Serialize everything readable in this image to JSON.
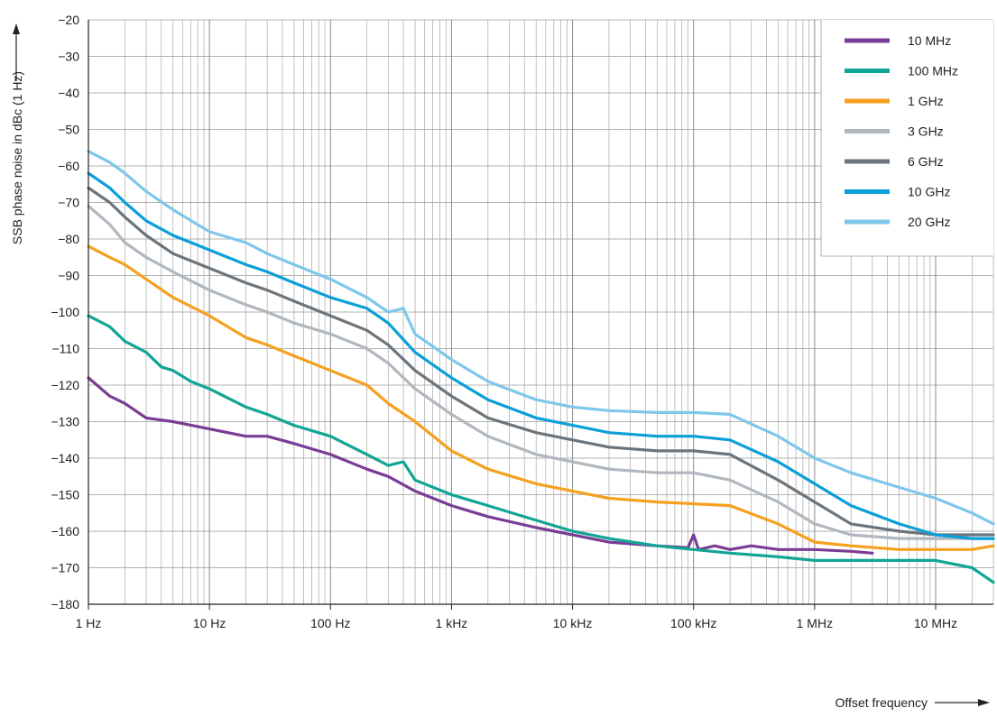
{
  "chart_data": {
    "type": "line",
    "title": "",
    "xlabel": "Offset frequency",
    "ylabel": "SSB phase noise in dBc (1 Hz)",
    "x_scale": "log",
    "xlim": [
      1,
      30000000
    ],
    "ylim": [
      -180,
      -20
    ],
    "grid": true,
    "legend_position": "top-right",
    "x_ticks": [
      {
        "value": 1,
        "label": "1 Hz"
      },
      {
        "value": 10,
        "label": "10 Hz"
      },
      {
        "value": 100,
        "label": "100 Hz"
      },
      {
        "value": 1000,
        "label": "1 kHz"
      },
      {
        "value": 10000,
        "label": "10 kHz"
      },
      {
        "value": 100000,
        "label": "100 kHz"
      },
      {
        "value": 1000000,
        "label": "1 MHz"
      },
      {
        "value": 10000000,
        "label": "10 MHz"
      }
    ],
    "y_ticks": [
      -20,
      -30,
      -40,
      -50,
      -60,
      -70,
      -80,
      -90,
      -100,
      -110,
      -120,
      -130,
      -140,
      -150,
      -160,
      -170,
      -180
    ],
    "y_tick_labels": [
      "−20",
      "−30",
      "−40",
      "−50",
      "−60",
      "−70",
      "−80",
      "−90",
      "−100",
      "−110",
      "−120",
      "−130",
      "−140",
      "−150",
      "−160",
      "−170",
      "−180"
    ],
    "series": [
      {
        "name": "10 MHz",
        "color": "#7b3c96",
        "points": [
          [
            1,
            -118
          ],
          [
            1.5,
            -123
          ],
          [
            2,
            -125
          ],
          [
            3,
            -129
          ],
          [
            5,
            -130
          ],
          [
            10,
            -132
          ],
          [
            20,
            -134
          ],
          [
            30,
            -134
          ],
          [
            50,
            -136
          ],
          [
            100,
            -139
          ],
          [
            200,
            -143
          ],
          [
            300,
            -145
          ],
          [
            500,
            -149
          ],
          [
            1000,
            -153
          ],
          [
            2000,
            -156
          ],
          [
            5000,
            -159
          ],
          [
            10000,
            -161
          ],
          [
            20000,
            -163
          ],
          [
            50000,
            -164
          ],
          [
            90000,
            -164.5
          ],
          [
            100000,
            -161
          ],
          [
            110000,
            -165
          ],
          [
            150000,
            -164
          ],
          [
            200000,
            -165
          ],
          [
            300000,
            -164
          ],
          [
            500000,
            -165
          ],
          [
            1000000,
            -165
          ],
          [
            2000000,
            -165.5
          ],
          [
            3000000,
            -166
          ]
        ]
      },
      {
        "name": "100 MHz",
        "color": "#10a595",
        "points": [
          [
            1,
            -101
          ],
          [
            1.5,
            -104
          ],
          [
            2,
            -108
          ],
          [
            3,
            -111
          ],
          [
            4,
            -115
          ],
          [
            5,
            -116
          ],
          [
            7,
            -119
          ],
          [
            10,
            -121
          ],
          [
            20,
            -126
          ],
          [
            30,
            -128
          ],
          [
            50,
            -131
          ],
          [
            100,
            -134
          ],
          [
            200,
            -139
          ],
          [
            300,
            -142
          ],
          [
            400,
            -141
          ],
          [
            500,
            -146
          ],
          [
            1000,
            -150
          ],
          [
            2000,
            -153
          ],
          [
            5000,
            -157
          ],
          [
            10000,
            -160
          ],
          [
            20000,
            -162
          ],
          [
            50000,
            -164
          ],
          [
            100000,
            -165
          ],
          [
            200000,
            -166
          ],
          [
            500000,
            -167
          ],
          [
            1000000,
            -168
          ],
          [
            5000000,
            -168
          ],
          [
            10000000,
            -168
          ],
          [
            20000000,
            -170
          ],
          [
            30000000,
            -174
          ]
        ]
      },
      {
        "name": "1 GHz",
        "color": "#f5a01e",
        "points": [
          [
            1,
            -82
          ],
          [
            1.5,
            -85
          ],
          [
            2,
            -87
          ],
          [
            3,
            -91
          ],
          [
            5,
            -96
          ],
          [
            10,
            -101
          ],
          [
            20,
            -107
          ],
          [
            30,
            -109
          ],
          [
            50,
            -112
          ],
          [
            100,
            -116
          ],
          [
            200,
            -120
          ],
          [
            300,
            -125
          ],
          [
            500,
            -130
          ],
          [
            1000,
            -138
          ],
          [
            2000,
            -143
          ],
          [
            5000,
            -147
          ],
          [
            10000,
            -149
          ],
          [
            20000,
            -151
          ],
          [
            50000,
            -152
          ],
          [
            100000,
            -152.5
          ],
          [
            200000,
            -153
          ],
          [
            500000,
            -158
          ],
          [
            1000000,
            -163
          ],
          [
            2000000,
            -164
          ],
          [
            5000000,
            -165
          ],
          [
            10000000,
            -165
          ],
          [
            20000000,
            -165
          ],
          [
            30000000,
            -164
          ]
        ]
      },
      {
        "name": "3 GHz",
        "color": "#b0b7be",
        "points": [
          [
            1,
            -71
          ],
          [
            1.5,
            -76
          ],
          [
            2,
            -81
          ],
          [
            3,
            -85
          ],
          [
            5,
            -89
          ],
          [
            10,
            -94
          ],
          [
            20,
            -98
          ],
          [
            30,
            -100
          ],
          [
            50,
            -103
          ],
          [
            100,
            -106
          ],
          [
            200,
            -110
          ],
          [
            300,
            -114
          ],
          [
            500,
            -121
          ],
          [
            1000,
            -128
          ],
          [
            2000,
            -134
          ],
          [
            5000,
            -139
          ],
          [
            10000,
            -141
          ],
          [
            20000,
            -143
          ],
          [
            50000,
            -144
          ],
          [
            100000,
            -144
          ],
          [
            200000,
            -146
          ],
          [
            500000,
            -152
          ],
          [
            1000000,
            -158
          ],
          [
            2000000,
            -161
          ],
          [
            5000000,
            -162
          ],
          [
            10000000,
            -162
          ],
          [
            20000000,
            -162
          ],
          [
            30000000,
            -162
          ]
        ]
      },
      {
        "name": "6 GHz",
        "color": "#6c757c",
        "points": [
          [
            1,
            -66
          ],
          [
            1.5,
            -70
          ],
          [
            2,
            -74
          ],
          [
            3,
            -79
          ],
          [
            5,
            -84
          ],
          [
            10,
            -88
          ],
          [
            20,
            -92
          ],
          [
            30,
            -94
          ],
          [
            50,
            -97
          ],
          [
            100,
            -101
          ],
          [
            200,
            -105
          ],
          [
            300,
            -109
          ],
          [
            500,
            -116
          ],
          [
            1000,
            -123
          ],
          [
            2000,
            -129
          ],
          [
            5000,
            -133
          ],
          [
            10000,
            -135
          ],
          [
            20000,
            -137
          ],
          [
            50000,
            -138
          ],
          [
            100000,
            -138
          ],
          [
            200000,
            -139
          ],
          [
            500000,
            -146
          ],
          [
            1000000,
            -152
          ],
          [
            2000000,
            -158
          ],
          [
            5000000,
            -160
          ],
          [
            10000000,
            -161
          ],
          [
            20000000,
            -161
          ],
          [
            30000000,
            -161
          ]
        ]
      },
      {
        "name": "10 GHz",
        "color": "#0a9fd8",
        "points": [
          [
            1,
            -62
          ],
          [
            1.5,
            -66
          ],
          [
            2,
            -70
          ],
          [
            3,
            -75
          ],
          [
            5,
            -79
          ],
          [
            10,
            -83
          ],
          [
            20,
            -87
          ],
          [
            30,
            -89
          ],
          [
            50,
            -92
          ],
          [
            100,
            -96
          ],
          [
            200,
            -99
          ],
          [
            300,
            -103
          ],
          [
            500,
            -111
          ],
          [
            1000,
            -118
          ],
          [
            2000,
            -124
          ],
          [
            5000,
            -129
          ],
          [
            10000,
            -131
          ],
          [
            20000,
            -133
          ],
          [
            50000,
            -134
          ],
          [
            100000,
            -134
          ],
          [
            200000,
            -135
          ],
          [
            500000,
            -141
          ],
          [
            1000000,
            -147
          ],
          [
            2000000,
            -153
          ],
          [
            5000000,
            -158
          ],
          [
            10000000,
            -161
          ],
          [
            20000000,
            -162
          ],
          [
            30000000,
            -162
          ]
        ]
      },
      {
        "name": "20 GHz",
        "color": "#7fc7ea",
        "points": [
          [
            1,
            -56
          ],
          [
            1.5,
            -59
          ],
          [
            2,
            -62
          ],
          [
            3,
            -67
          ],
          [
            5,
            -72
          ],
          [
            10,
            -78
          ],
          [
            20,
            -81
          ],
          [
            30,
            -84
          ],
          [
            50,
            -87
          ],
          [
            100,
            -91
          ],
          [
            200,
            -96
          ],
          [
            300,
            -100
          ],
          [
            400,
            -99
          ],
          [
            500,
            -106
          ],
          [
            1000,
            -113
          ],
          [
            2000,
            -119
          ],
          [
            5000,
            -124
          ],
          [
            10000,
            -126
          ],
          [
            20000,
            -127
          ],
          [
            50000,
            -127.5
          ],
          [
            100000,
            -127.5
          ],
          [
            200000,
            -128
          ],
          [
            500000,
            -134
          ],
          [
            1000000,
            -140
          ],
          [
            2000000,
            -144
          ],
          [
            5000000,
            -148
          ],
          [
            10000000,
            -151
          ],
          [
            20000000,
            -155
          ],
          [
            30000000,
            -158
          ]
        ]
      }
    ]
  }
}
